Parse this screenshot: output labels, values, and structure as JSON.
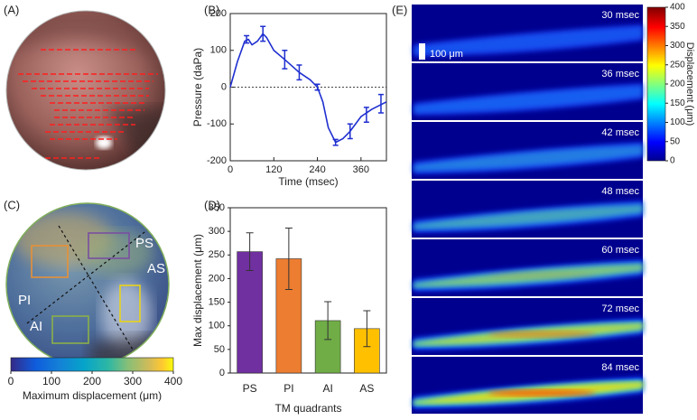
{
  "panel_labels": [
    "(A)",
    "(B)",
    "(C)",
    "(D)",
    "(E)"
  ],
  "chart_data": [
    {
      "type": "line",
      "xlabel": "Time (msec)",
      "ylabel": "Pressure (daPa)",
      "xlim": [
        0,
        430
      ],
      "xticks": [
        0,
        120,
        240,
        360
      ],
      "ylim": [
        -200,
        200
      ],
      "yticks": [
        -200,
        -100,
        0,
        100,
        200
      ],
      "reference_line": 0,
      "series": [
        {
          "color": "#1f2fd0",
          "x": [
            0,
            20,
            40,
            50,
            60,
            75,
            90,
            100,
            120,
            150,
            190,
            220,
            240,
            255,
            270,
            290,
            310,
            330,
            360,
            390,
            430
          ],
          "values": [
            0,
            70,
            125,
            130,
            115,
            125,
            145,
            135,
            100,
            75,
            40,
            20,
            0,
            -40,
            -110,
            -150,
            -140,
            -120,
            -80,
            -60,
            -40
          ]
        },
        {
          "color": "#1f2fd0",
          "x": [
            45,
            90,
            150,
            190,
            240,
            290,
            330,
            375,
            415
          ],
          "values": [
            130,
            145,
            75,
            40,
            0,
            -150,
            -120,
            -75,
            -45
          ],
          "errors": [
            10,
            20,
            25,
            20,
            8,
            8,
            20,
            20,
            25
          ]
        }
      ]
    },
    {
      "type": "bar",
      "xlabel": "TM quadrants",
      "ylabel": "Max displacement (μm)",
      "categories": [
        "PS",
        "PI",
        "AI",
        "AS"
      ],
      "values": [
        257,
        242,
        111,
        94
      ],
      "errors": [
        40,
        65,
        40,
        38
      ],
      "colors": [
        "#7030a0",
        "#ed7d31",
        "#70ad47",
        "#ffc000"
      ],
      "ylim": [
        0,
        350
      ],
      "yticks": [
        0,
        50,
        100,
        150,
        200,
        250,
        300,
        350
      ]
    },
    {
      "type": "colorbar",
      "orientation": "horizontal",
      "colormap": "parula",
      "xlabel": "Maximum displacement (μm)",
      "xlim": [
        0,
        400
      ],
      "xticks": [
        0,
        100,
        200,
        300,
        400
      ]
    },
    {
      "type": "colorbar",
      "orientation": "vertical",
      "colormap": "jet",
      "ylabel": "Displacement (μm)",
      "ylim": [
        0,
        400
      ],
      "yticks": [
        0,
        50,
        100,
        150,
        200,
        250,
        300,
        350,
        400
      ]
    }
  ],
  "quadrants": [
    "PS",
    "AS",
    "PI",
    "AI"
  ],
  "frames": [
    "30 msec",
    "36 msec",
    "42 msec",
    "48 msec",
    "60 msec",
    "72 msec",
    "84 msec"
  ],
  "scale_bar": "100 μm"
}
